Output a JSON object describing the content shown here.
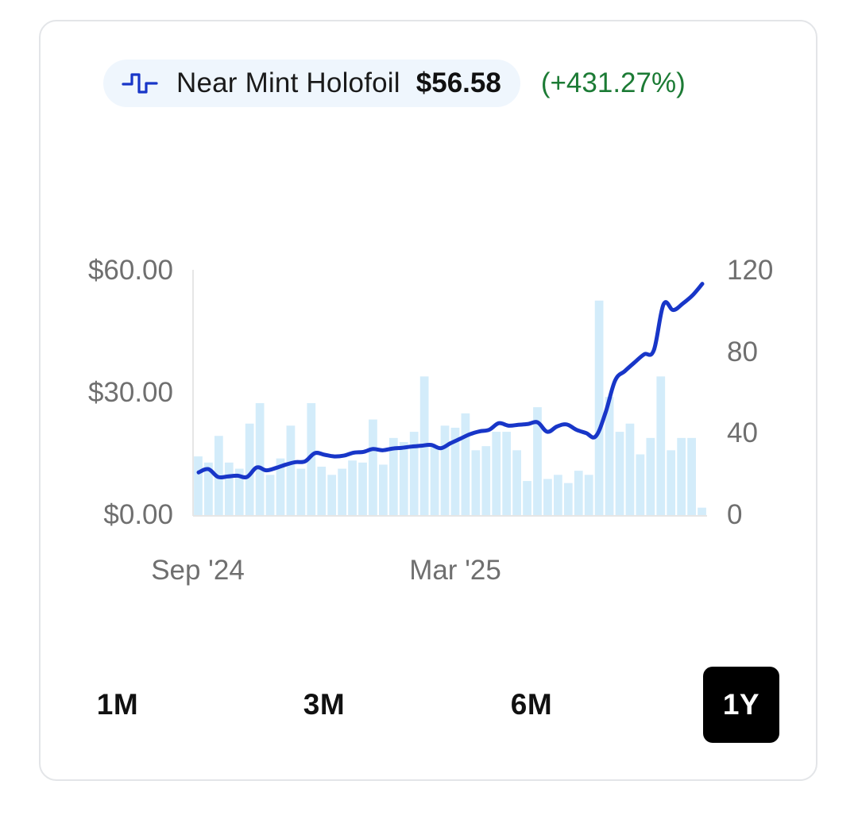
{
  "legend": {
    "icon": "step-line-icon",
    "series_name": "Near Mint Holofoil",
    "price": "$56.58",
    "change": "(+431.27%)",
    "change_color": "#1c7b35",
    "pill_bg": "#eff6fd"
  },
  "ranges": [
    {
      "label": "1M",
      "active": false
    },
    {
      "label": "3M",
      "active": false
    },
    {
      "label": "6M",
      "active": false
    },
    {
      "label": "1Y",
      "active": true
    }
  ],
  "chart_data": {
    "type": "line",
    "title": "",
    "xlabel": "",
    "ylabel": "",
    "x_ticks": [
      "Sep '24",
      "Mar '25"
    ],
    "y_left": {
      "range": [
        0,
        60
      ],
      "ticks": [
        "$0.00",
        "$30.00",
        "$60.00"
      ],
      "tick_values": [
        0,
        30,
        60
      ]
    },
    "y_right": {
      "range": [
        0,
        120
      ],
      "ticks": [
        "0",
        "40",
        "80",
        "120"
      ],
      "tick_values": [
        0,
        40,
        80,
        120
      ]
    },
    "grid": false,
    "colors": {
      "line": "#1836c8",
      "bars": "#d3ecfa",
      "axis": "#e6e6e6"
    },
    "series": [
      {
        "name": "Near Mint Holofoil",
        "type": "line",
        "axis": "left",
        "values": [
          10.6,
          11.4,
          9.5,
          9.6,
          9.8,
          9.5,
          11.8,
          11.1,
          11.7,
          12.5,
          13.1,
          13.3,
          15.3,
          14.9,
          14.5,
          14.7,
          15.4,
          15.6,
          16.3,
          16.0,
          16.4,
          16.6,
          16.9,
          17.1,
          17.3,
          16.5,
          17.7,
          18.8,
          19.9,
          20.6,
          21.0,
          22.6,
          22.0,
          22.2,
          22.4,
          22.8,
          20.5,
          21.8,
          22.3,
          21.0,
          20.2,
          19.4,
          25.1,
          33.0,
          35.3,
          37.4,
          39.4,
          40.4,
          51.6,
          50.2,
          51.8,
          53.8,
          56.58
        ]
      },
      {
        "name": "",
        "type": "bar",
        "axis": "right",
        "values": [
          29,
          26,
          39,
          26,
          23,
          45,
          55,
          20,
          28,
          44,
          23,
          55,
          24,
          20,
          23,
          27,
          26,
          47,
          25,
          38,
          36,
          41,
          68,
          34,
          44,
          43,
          50,
          32,
          34,
          41,
          41,
          32,
          17,
          53,
          18,
          20,
          16,
          22,
          20,
          105,
          58,
          41,
          45,
          30,
          38,
          68,
          32,
          38,
          38,
          4
        ]
      }
    ]
  }
}
